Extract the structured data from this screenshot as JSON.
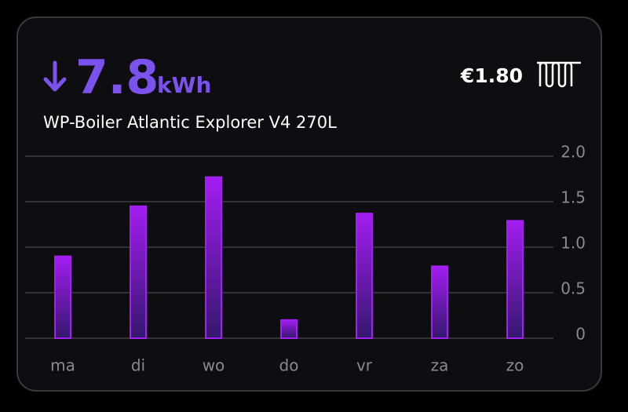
{
  "header": {
    "value": "7.8",
    "unit": "kWh",
    "cost": "€1.80",
    "title": "WP-Boiler Atlantic Explorer V4 270L"
  },
  "chart_data": {
    "type": "bar",
    "categories": [
      "ma",
      "di",
      "wo",
      "do",
      "vr",
      "za",
      "zo"
    ],
    "values": [
      0.9,
      1.45,
      1.77,
      0.2,
      1.37,
      0.79,
      1.29
    ],
    "color": "#a020f0",
    "ylim": [
      0,
      2
    ],
    "yticks": [
      0,
      0.5,
      {
        "value": 1,
        "label": "1.0"
      },
      1.5,
      {
        "value": 2,
        "label": "2.0"
      }
    ],
    "grid": true
  }
}
